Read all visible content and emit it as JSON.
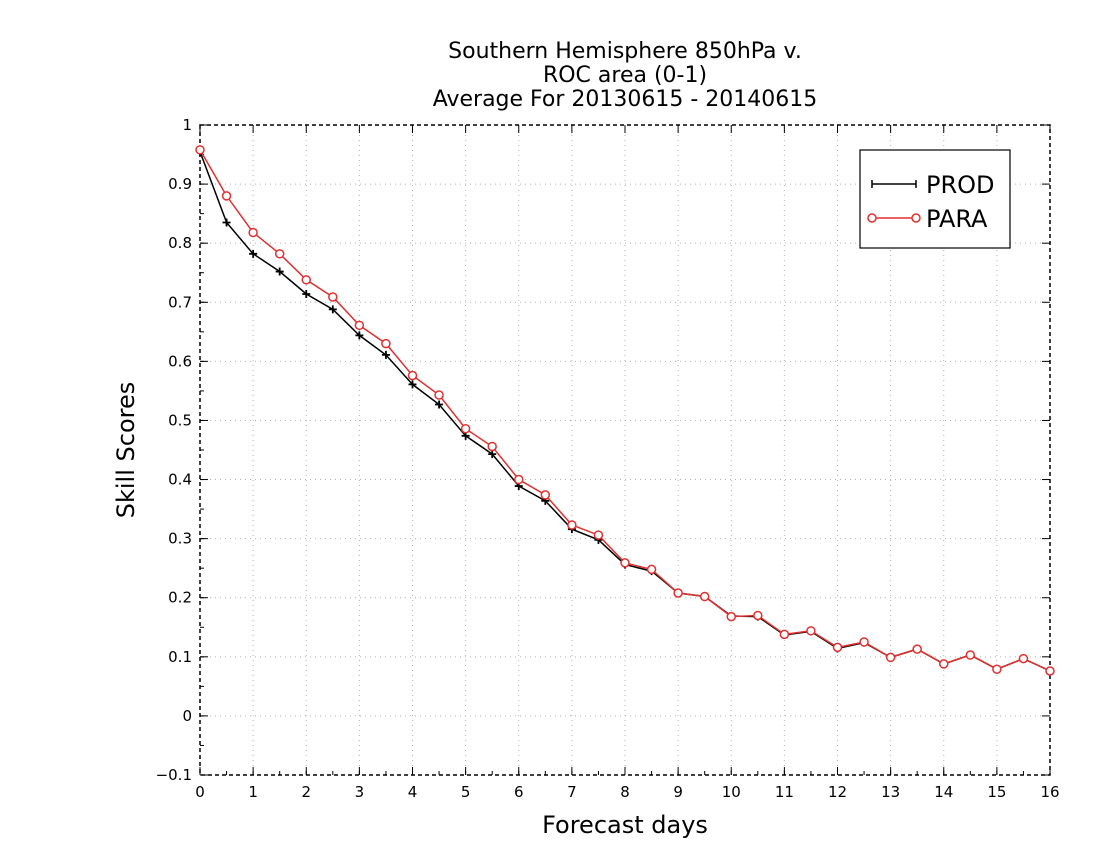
{
  "chart_data": {
    "type": "line",
    "title_lines": [
      "Southern Hemisphere 850hPa v.",
      "ROC area (0-1)",
      "Average For 20130615 - 20140615"
    ],
    "xlabel": "Forecast days",
    "ylabel": "Skill Scores",
    "xlim": [
      0,
      16
    ],
    "ylim": [
      -0.1,
      1
    ],
    "x_ticks": [
      0,
      1,
      2,
      3,
      4,
      5,
      6,
      7,
      8,
      9,
      10,
      11,
      12,
      13,
      14,
      15,
      16
    ],
    "y_ticks": [
      -0.1,
      0,
      0.1,
      0.2,
      0.3,
      0.4,
      0.5,
      0.6,
      0.7,
      0.8,
      0.9,
      1
    ],
    "y_tick_labels": [
      "−0.1",
      "0",
      "0.1",
      "0.2",
      "0.3",
      "0.4",
      "0.5",
      "0.6",
      "0.7",
      "0.8",
      "0.9",
      "1"
    ],
    "grid": true,
    "legend_position": "top-right",
    "x": [
      0,
      0.5,
      1,
      1.5,
      2,
      2.5,
      3,
      3.5,
      4,
      4.5,
      5,
      5.5,
      6,
      6.5,
      7,
      7.5,
      8,
      8.5,
      9,
      9.5,
      10,
      10.5,
      11,
      11.5,
      12,
      12.5,
      13,
      13.5,
      14,
      14.5,
      15,
      15.5,
      16
    ],
    "series": [
      {
        "name": "PROD",
        "color": "#000000",
        "marker": "plus",
        "values": [
          0.955,
          0.835,
          0.782,
          0.752,
          0.714,
          0.688,
          0.644,
          0.611,
          0.561,
          0.527,
          0.474,
          0.443,
          0.389,
          0.364,
          0.316,
          0.298,
          0.256,
          0.245,
          0.208,
          0.202,
          0.169,
          0.168,
          0.137,
          0.143,
          0.114,
          0.124,
          0.099,
          0.113,
          0.088,
          0.103,
          0.079,
          0.097,
          0.076
        ]
      },
      {
        "name": "PARA",
        "color": "#e03030",
        "marker": "circle",
        "values": [
          0.958,
          0.88,
          0.818,
          0.782,
          0.738,
          0.709,
          0.661,
          0.63,
          0.576,
          0.543,
          0.486,
          0.456,
          0.4,
          0.374,
          0.323,
          0.306,
          0.259,
          0.248,
          0.208,
          0.202,
          0.168,
          0.17,
          0.138,
          0.144,
          0.116,
          0.125,
          0.099,
          0.113,
          0.088,
          0.103,
          0.079,
          0.097,
          0.076
        ]
      }
    ]
  }
}
